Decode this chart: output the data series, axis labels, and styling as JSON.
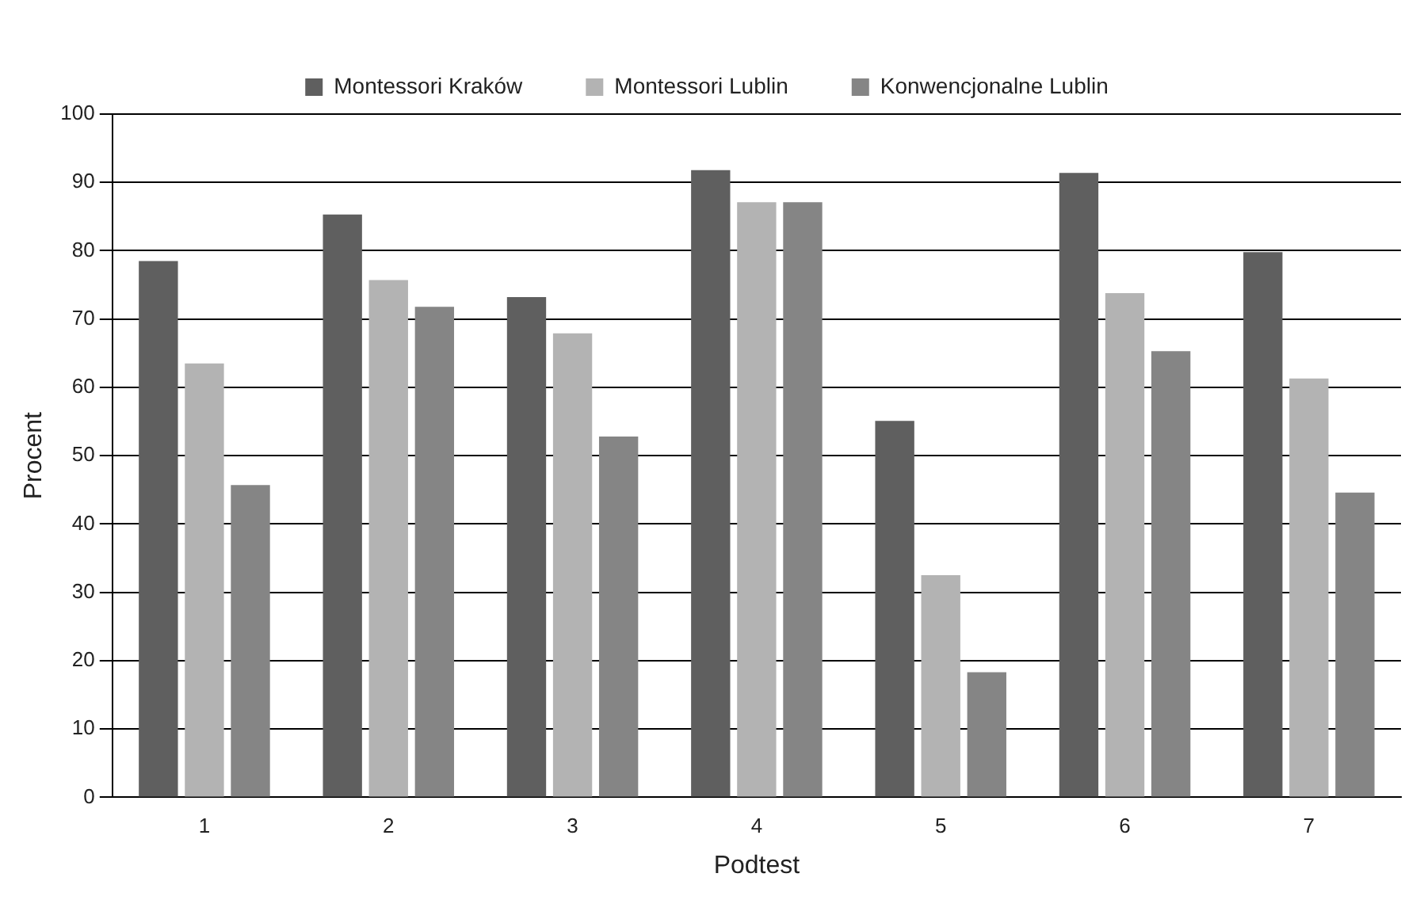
{
  "chart_data": {
    "type": "bar",
    "xlabel": "Podtest",
    "ylabel": "Procent",
    "categories": [
      "1",
      "2",
      "3",
      "4",
      "5",
      "6",
      "7"
    ],
    "series": [
      {
        "name": "Montessori Kraków",
        "color": "#5f5f5f",
        "values": [
          78.5,
          85.3,
          73.2,
          91.8,
          55.1,
          91.4,
          79.8
        ]
      },
      {
        "name": "Montessori Lublin",
        "color": "#b3b3b3",
        "values": [
          63.5,
          75.7,
          67.9,
          87.1,
          32.5,
          73.8,
          61.3
        ]
      },
      {
        "name": "Konwencjonalne Lublin",
        "color": "#858585",
        "values": [
          45.7,
          71.8,
          52.8,
          87.1,
          18.3,
          65.3,
          44.6
        ]
      }
    ],
    "ylim": [
      0,
      100
    ],
    "yticks": [
      0,
      10,
      20,
      30,
      40,
      50,
      60,
      70,
      80,
      90,
      100
    ],
    "grid": "y",
    "legend": "top"
  }
}
